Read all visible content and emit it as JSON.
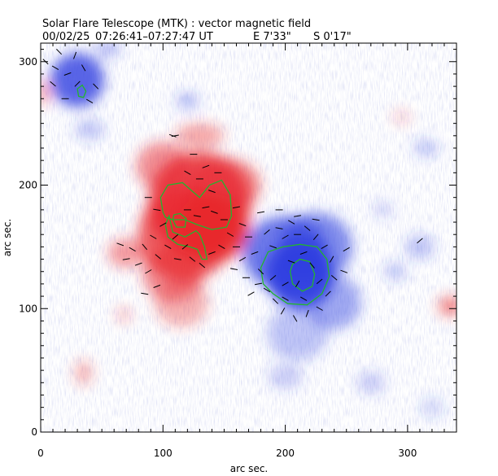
{
  "header": {
    "title": "Solar Flare Telescope (MTK) : vector magnetic field",
    "date": "00/02/25",
    "time_range": "07:26:41–07:27:47 UT",
    "position_ew": "E 7'33\"",
    "position_ns": "S 0'17\""
  },
  "chart_data": {
    "type": "heatmap",
    "xlabel": "arc sec.",
    "ylabel": "arc sec.",
    "xlim": [
      0,
      340
    ],
    "ylim": [
      0,
      315
    ],
    "x_ticks": [
      0,
      100,
      200,
      300
    ],
    "y_ticks": [
      0,
      100,
      200,
      300
    ],
    "grid": false,
    "colors": {
      "positive": "#e8262b",
      "negative": "#2f3fe0",
      "contour": "#22b52e",
      "vector": "#000000"
    },
    "positive_regions": [
      {
        "x": 130,
        "y": 185,
        "rx": 42,
        "ry": 42,
        "strength": 0.8
      },
      {
        "x": 118,
        "y": 160,
        "rx": 38,
        "ry": 38,
        "strength": 0.75
      },
      {
        "x": 140,
        "y": 165,
        "rx": 30,
        "ry": 28,
        "strength": 0.85
      },
      {
        "x": 150,
        "y": 200,
        "rx": 30,
        "ry": 22,
        "strength": 0.55
      },
      {
        "x": 108,
        "y": 128,
        "rx": 25,
        "ry": 22,
        "strength": 0.5
      },
      {
        "x": 115,
        "y": 105,
        "rx": 22,
        "ry": 20,
        "strength": 0.35
      },
      {
        "x": 70,
        "y": 145,
        "rx": 15,
        "ry": 12,
        "strength": 0.45
      },
      {
        "x": 100,
        "y": 215,
        "rx": 22,
        "ry": 20,
        "strength": 0.5
      },
      {
        "x": 130,
        "y": 240,
        "rx": 20,
        "ry": 10,
        "strength": 0.4
      },
      {
        "x": 335,
        "y": 102,
        "rx": 10,
        "ry": 8,
        "strength": 0.55
      },
      {
        "x": 35,
        "y": 48,
        "rx": 7,
        "ry": 10,
        "strength": 0.35
      },
      {
        "x": 68,
        "y": 95,
        "rx": 6,
        "ry": 6,
        "strength": 0.3
      },
      {
        "x": 2,
        "y": 275,
        "rx": 6,
        "ry": 10,
        "strength": 0.4
      },
      {
        "x": 295,
        "y": 255,
        "rx": 7,
        "ry": 5,
        "strength": 0.25
      }
    ],
    "negative_regions": [
      {
        "x": 212,
        "y": 128,
        "rx": 28,
        "ry": 28,
        "strength": 0.95
      },
      {
        "x": 200,
        "y": 145,
        "rx": 35,
        "ry": 30,
        "strength": 0.7
      },
      {
        "x": 225,
        "y": 150,
        "rx": 30,
        "ry": 28,
        "strength": 0.6
      },
      {
        "x": 240,
        "y": 105,
        "rx": 22,
        "ry": 22,
        "strength": 0.45
      },
      {
        "x": 210,
        "y": 80,
        "rx": 25,
        "ry": 22,
        "strength": 0.3
      },
      {
        "x": 30,
        "y": 285,
        "rx": 22,
        "ry": 22,
        "strength": 0.8
      },
      {
        "x": 40,
        "y": 245,
        "rx": 12,
        "ry": 8,
        "strength": 0.3
      },
      {
        "x": 120,
        "y": 268,
        "rx": 9,
        "ry": 7,
        "strength": 0.35
      },
      {
        "x": 310,
        "y": 150,
        "rx": 12,
        "ry": 10,
        "strength": 0.3
      },
      {
        "x": 315,
        "y": 230,
        "rx": 10,
        "ry": 7,
        "strength": 0.3
      },
      {
        "x": 290,
        "y": 130,
        "rx": 9,
        "ry": 7,
        "strength": 0.3
      },
      {
        "x": 270,
        "y": 40,
        "rx": 12,
        "ry": 9,
        "strength": 0.25
      },
      {
        "x": 200,
        "y": 45,
        "rx": 14,
        "ry": 10,
        "strength": 0.25
      },
      {
        "x": 55,
        "y": 310,
        "rx": 10,
        "ry": 6,
        "strength": 0.4
      },
      {
        "x": 280,
        "y": 180,
        "rx": 8,
        "ry": 6,
        "strength": 0.25
      },
      {
        "x": 320,
        "y": 20,
        "rx": 10,
        "ry": 8,
        "strength": 0.2
      }
    ],
    "contours": [
      {
        "polarity": "positive",
        "points": [
          [
            100,
            178
          ],
          [
            98,
            190
          ],
          [
            104,
            200
          ],
          [
            116,
            202
          ],
          [
            124,
            195
          ],
          [
            130,
            190
          ],
          [
            138,
            200
          ],
          [
            148,
            204
          ],
          [
            155,
            192
          ],
          [
            156,
            175
          ],
          [
            152,
            166
          ],
          [
            140,
            164
          ],
          [
            128,
            168
          ],
          [
            118,
            172
          ],
          [
            108,
            172
          ],
          [
            102,
            174
          ]
        ]
      },
      {
        "polarity": "positive",
        "points": [
          [
            105,
            175
          ],
          [
            108,
            162
          ],
          [
            118,
            158
          ],
          [
            127,
            163
          ],
          [
            130,
            160
          ],
          [
            134,
            150
          ],
          [
            136,
            140
          ],
          [
            132,
            140
          ],
          [
            128,
            148
          ],
          [
            122,
            150
          ],
          [
            112,
            152
          ],
          [
            104,
            158
          ],
          [
            102,
            168
          ]
        ]
      },
      {
        "polarity": "positive",
        "points": [
          [
            108,
            172
          ],
          [
            111,
            166
          ],
          [
            118,
            166
          ],
          [
            119,
            173
          ],
          [
            114,
            177
          ],
          [
            109,
            176
          ]
        ]
      },
      {
        "polarity": "negative",
        "points": [
          [
            180,
            133
          ],
          [
            182,
            120
          ],
          [
            190,
            112
          ],
          [
            202,
            104
          ],
          [
            218,
            103
          ],
          [
            230,
            112
          ],
          [
            236,
            126
          ],
          [
            234,
            140
          ],
          [
            226,
            150
          ],
          [
            212,
            152
          ],
          [
            198,
            150
          ],
          [
            186,
            146
          ]
        ]
      },
      {
        "polarity": "negative",
        "points": [
          [
            204,
            130
          ],
          [
            206,
            120
          ],
          [
            214,
            114
          ],
          [
            222,
            118
          ],
          [
            224,
            128
          ],
          [
            220,
            138
          ],
          [
            212,
            140
          ],
          [
            206,
            136
          ]
        ]
      },
      {
        "polarity": "negative",
        "points": [
          [
            30,
            278
          ],
          [
            31,
            272
          ],
          [
            35,
            271
          ],
          [
            37,
            276
          ],
          [
            34,
            281
          ]
        ]
      }
    ],
    "vectors": [
      {
        "x": 4,
        "y": 300,
        "angle": -45
      },
      {
        "x": 12,
        "y": 295,
        "angle": -30
      },
      {
        "x": 22,
        "y": 290,
        "angle": 20
      },
      {
        "x": 35,
        "y": 295,
        "angle": -60
      },
      {
        "x": 45,
        "y": 280,
        "angle": -45
      },
      {
        "x": 20,
        "y": 270,
        "angle": 0
      },
      {
        "x": 30,
        "y": 282,
        "angle": 45
      },
      {
        "x": 40,
        "y": 268,
        "angle": -30
      },
      {
        "x": 10,
        "y": 282,
        "angle": -40
      },
      {
        "x": 28,
        "y": 305,
        "angle": 70
      },
      {
        "x": 15,
        "y": 308,
        "angle": -45
      },
      {
        "x": 110,
        "y": 240,
        "angle": 10
      },
      {
        "x": 120,
        "y": 210,
        "angle": -30
      },
      {
        "x": 130,
        "y": 205,
        "angle": 0
      },
      {
        "x": 140,
        "y": 195,
        "angle": -20
      },
      {
        "x": 135,
        "y": 215,
        "angle": 20
      },
      {
        "x": 125,
        "y": 225,
        "angle": 0
      },
      {
        "x": 145,
        "y": 210,
        "angle": 0
      },
      {
        "x": 88,
        "y": 190,
        "angle": 0
      },
      {
        "x": 95,
        "y": 180,
        "angle": -10
      },
      {
        "x": 100,
        "y": 168,
        "angle": 30
      },
      {
        "x": 92,
        "y": 158,
        "angle": -30
      },
      {
        "x": 85,
        "y": 150,
        "angle": -50
      },
      {
        "x": 75,
        "y": 148,
        "angle": -30
      },
      {
        "x": 65,
        "y": 152,
        "angle": -20
      },
      {
        "x": 70,
        "y": 140,
        "angle": 10
      },
      {
        "x": 80,
        "y": 136,
        "angle": 20
      },
      {
        "x": 88,
        "y": 130,
        "angle": 30
      },
      {
        "x": 96,
        "y": 142,
        "angle": -40
      },
      {
        "x": 104,
        "y": 150,
        "angle": -30
      },
      {
        "x": 110,
        "y": 158,
        "angle": 40
      },
      {
        "x": 112,
        "y": 140,
        "angle": -10
      },
      {
        "x": 120,
        "y": 180,
        "angle": 0
      },
      {
        "x": 128,
        "y": 175,
        "angle": -10
      },
      {
        "x": 135,
        "y": 182,
        "angle": 10
      },
      {
        "x": 142,
        "y": 178,
        "angle": -20
      },
      {
        "x": 150,
        "y": 172,
        "angle": 0
      },
      {
        "x": 155,
        "y": 160,
        "angle": -30
      },
      {
        "x": 148,
        "y": 150,
        "angle": -30
      },
      {
        "x": 140,
        "y": 145,
        "angle": 20
      },
      {
        "x": 132,
        "y": 135,
        "angle": -40
      },
      {
        "x": 124,
        "y": 140,
        "angle": -40
      },
      {
        "x": 118,
        "y": 150,
        "angle": 40
      },
      {
        "x": 160,
        "y": 150,
        "angle": 0
      },
      {
        "x": 165,
        "y": 140,
        "angle": 30
      },
      {
        "x": 158,
        "y": 132,
        "angle": -10
      },
      {
        "x": 170,
        "y": 158,
        "angle": 0
      },
      {
        "x": 175,
        "y": 145,
        "angle": 20
      },
      {
        "x": 180,
        "y": 130,
        "angle": -45
      },
      {
        "x": 178,
        "y": 120,
        "angle": 10
      },
      {
        "x": 185,
        "y": 115,
        "angle": -30
      },
      {
        "x": 190,
        "y": 125,
        "angle": 40
      },
      {
        "x": 190,
        "y": 150,
        "angle": -20
      },
      {
        "x": 185,
        "y": 162,
        "angle": 40
      },
      {
        "x": 195,
        "y": 165,
        "angle": -10
      },
      {
        "x": 200,
        "y": 158,
        "angle": 30
      },
      {
        "x": 205,
        "y": 170,
        "angle": -30
      },
      {
        "x": 210,
        "y": 160,
        "angle": 0
      },
      {
        "x": 218,
        "y": 165,
        "angle": -40
      },
      {
        "x": 225,
        "y": 158,
        "angle": 50
      },
      {
        "x": 232,
        "y": 150,
        "angle": 30
      },
      {
        "x": 238,
        "y": 140,
        "angle": 60
      },
      {
        "x": 240,
        "y": 125,
        "angle": -40
      },
      {
        "x": 235,
        "y": 112,
        "angle": 45
      },
      {
        "x": 228,
        "y": 100,
        "angle": -30
      },
      {
        "x": 218,
        "y": 96,
        "angle": 70
      },
      {
        "x": 208,
        "y": 92,
        "angle": -60
      },
      {
        "x": 198,
        "y": 98,
        "angle": 60
      },
      {
        "x": 192,
        "y": 106,
        "angle": -45
      },
      {
        "x": 200,
        "y": 120,
        "angle": 30
      },
      {
        "x": 205,
        "y": 138,
        "angle": -20
      },
      {
        "x": 215,
        "y": 145,
        "angle": 20
      },
      {
        "x": 222,
        "y": 135,
        "angle": -50
      },
      {
        "x": 228,
        "y": 122,
        "angle": 40
      },
      {
        "x": 215,
        "y": 108,
        "angle": -30
      },
      {
        "x": 210,
        "y": 120,
        "angle": 60
      },
      {
        "x": 200,
        "y": 108,
        "angle": -30
      },
      {
        "x": 180,
        "y": 178,
        "angle": 10
      },
      {
        "x": 195,
        "y": 180,
        "angle": 0
      },
      {
        "x": 210,
        "y": 175,
        "angle": 10
      },
      {
        "x": 225,
        "y": 172,
        "angle": -10
      },
      {
        "x": 250,
        "y": 148,
        "angle": 30
      },
      {
        "x": 248,
        "y": 130,
        "angle": -20
      },
      {
        "x": 168,
        "y": 125,
        "angle": 0
      },
      {
        "x": 172,
        "y": 112,
        "angle": 30
      },
      {
        "x": 95,
        "y": 118,
        "angle": 20
      },
      {
        "x": 85,
        "y": 112,
        "angle": -10
      },
      {
        "x": 310,
        "y": 155,
        "angle": 40
      },
      {
        "x": 108,
        "y": 240,
        "angle": -20
      },
      {
        "x": 165,
        "y": 168,
        "angle": -20
      },
      {
        "x": 160,
        "y": 182,
        "angle": 10
      }
    ]
  }
}
